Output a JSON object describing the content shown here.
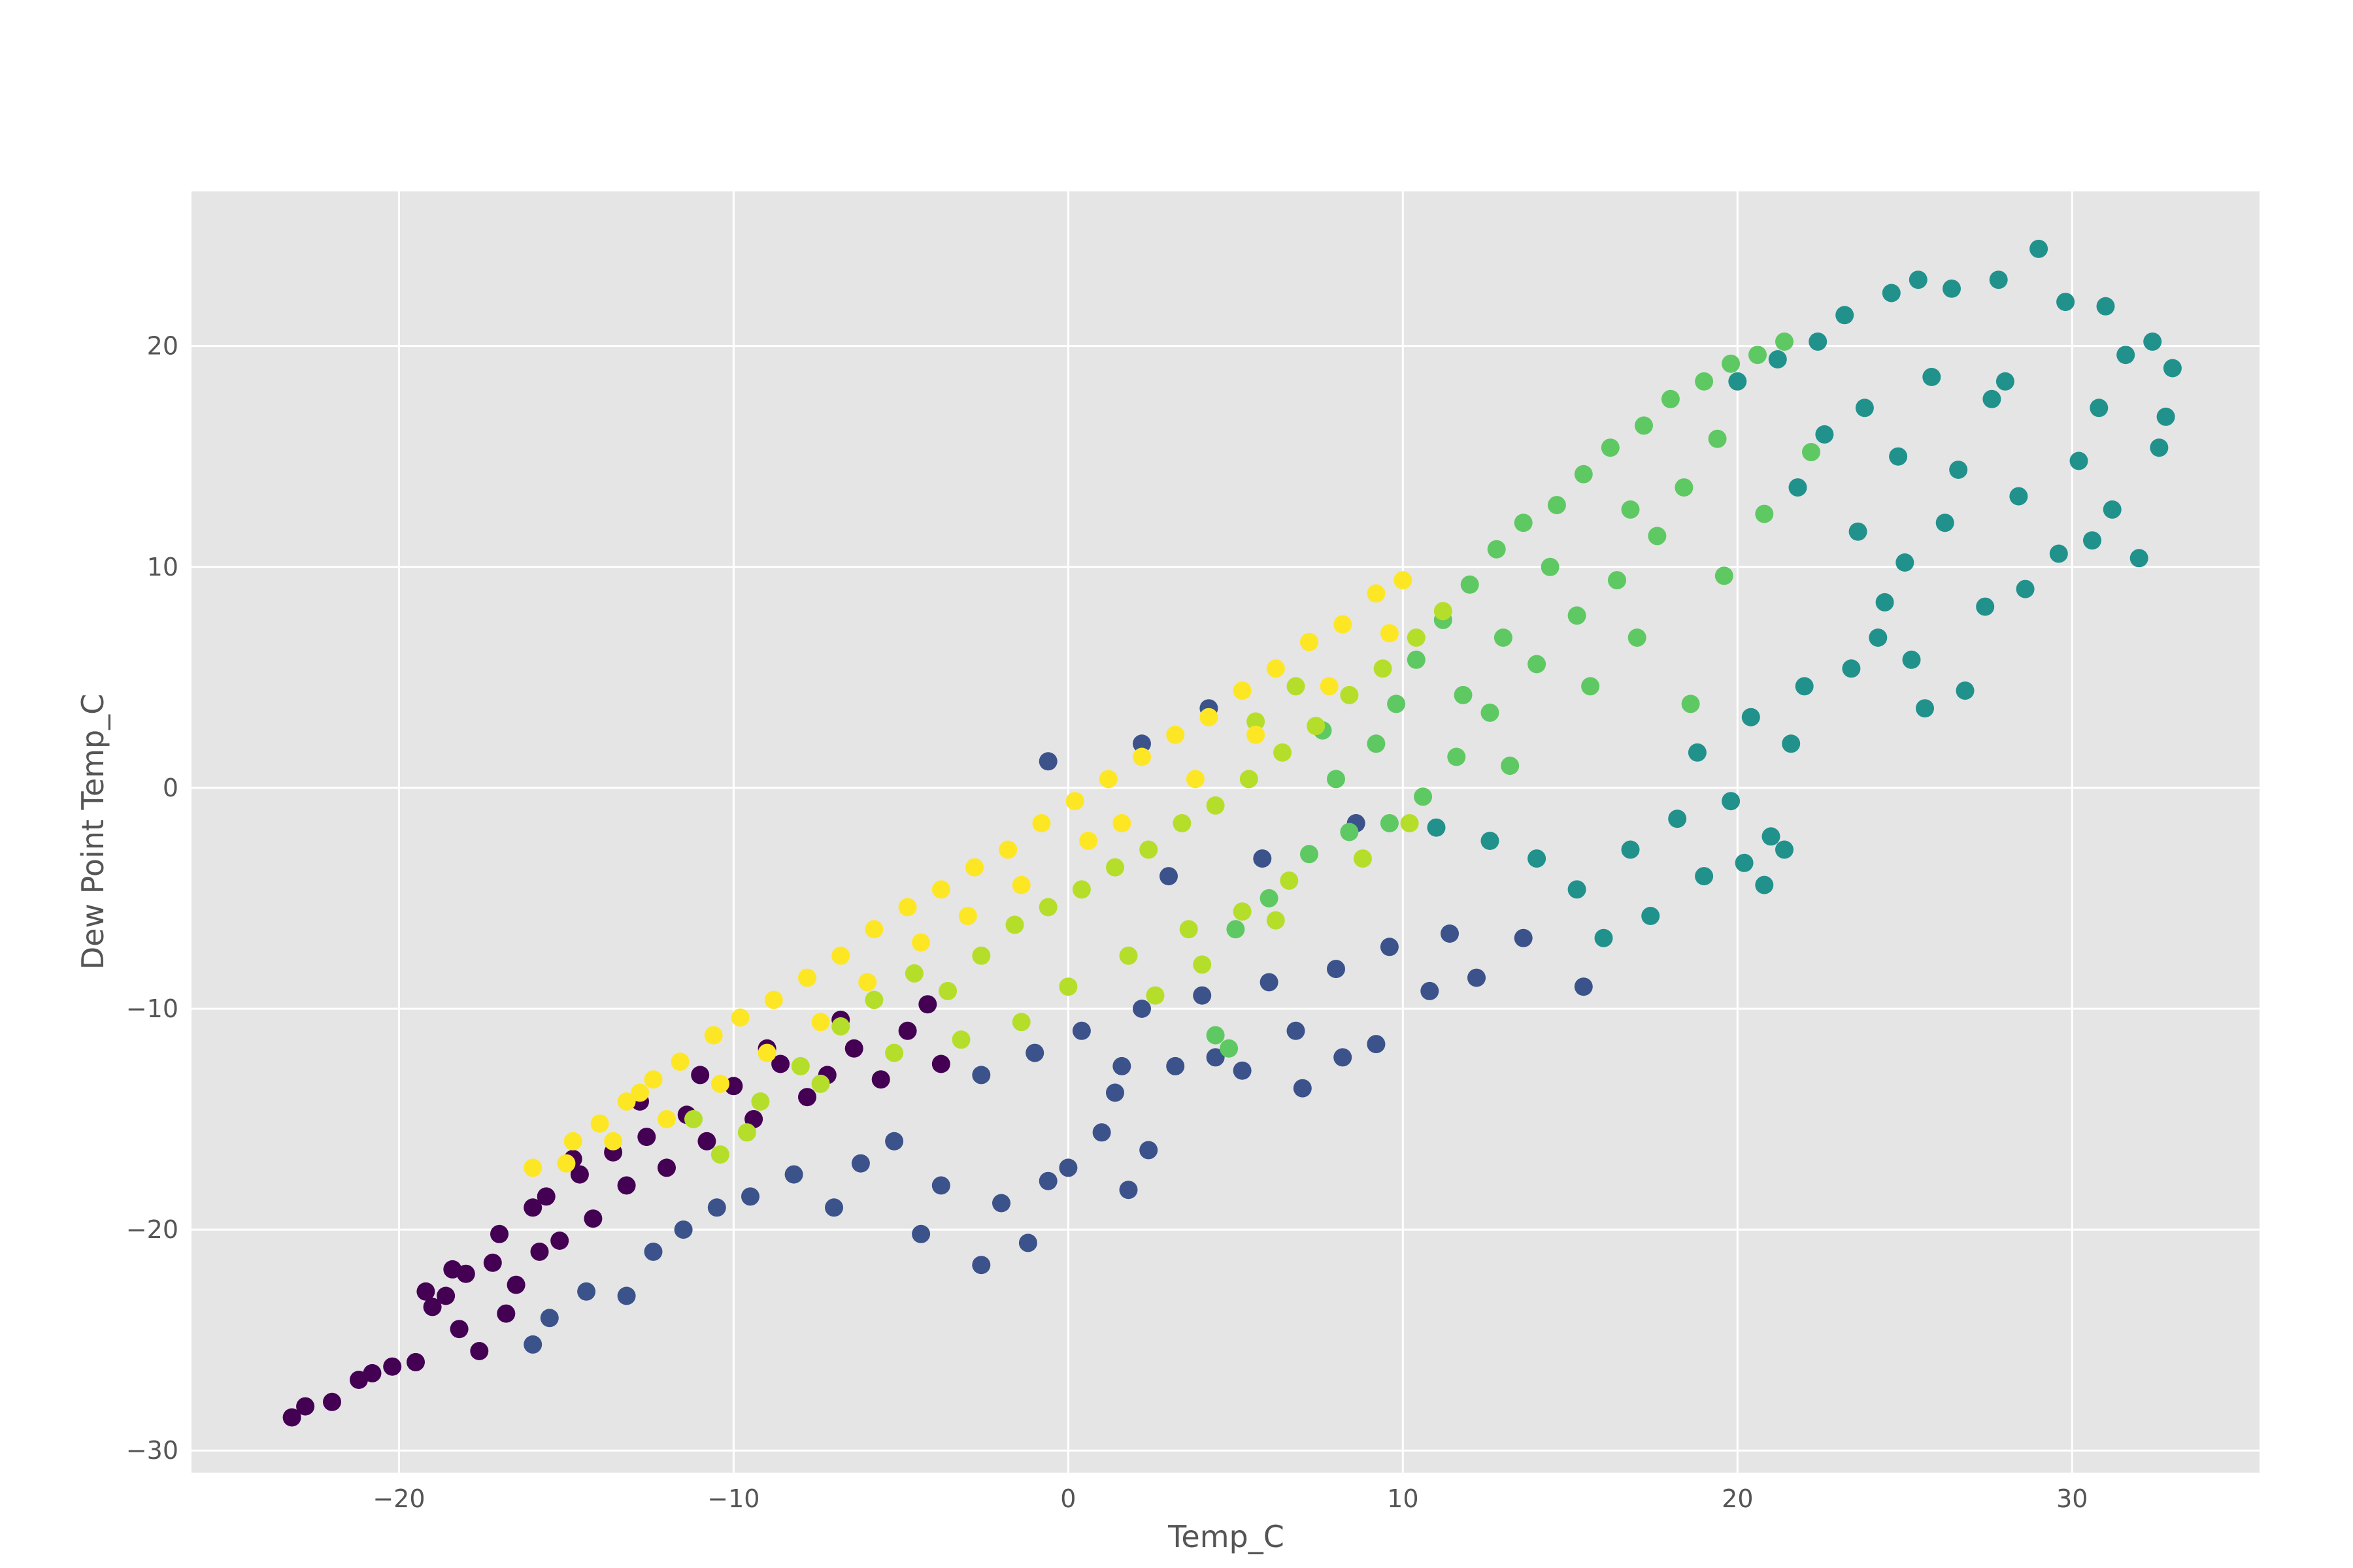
{
  "chart_data": {
    "type": "scatter",
    "title": "",
    "xlabel": "Temp_C",
    "ylabel": "Dew Point Temp_C",
    "xlim": [
      -26.2,
      35.6
    ],
    "ylim": [
      -31.0,
      27.0
    ],
    "xticks": [
      -20,
      -10,
      0,
      10,
      20,
      30
    ],
    "yticks": [
      -30,
      -20,
      -10,
      0,
      10,
      20
    ],
    "xtick_labels": [
      "−20",
      "−10",
      "0",
      "10",
      "20",
      "30"
    ],
    "ytick_labels": [
      "−30",
      "−20",
      "−10",
      "0",
      "10",
      "20"
    ],
    "grid": true,
    "legend": "none",
    "colormap": "viridis",
    "colors": {
      "plot_background": "#e5e5e5",
      "grid": "#ffffff",
      "text": "#555555"
    },
    "series": [
      {
        "color_group": "dark purple (cold months)",
        "color": "#440154",
        "points": [
          [
            -23.2,
            -28.5
          ],
          [
            -22.8,
            -28.0
          ],
          [
            -22.0,
            -27.8
          ],
          [
            -21.2,
            -26.8
          ],
          [
            -20.8,
            -26.5
          ],
          [
            -20.2,
            -26.2
          ],
          [
            -19.5,
            -26.0
          ],
          [
            -19.0,
            -23.5
          ],
          [
            -18.6,
            -23.0
          ],
          [
            -18.2,
            -24.5
          ],
          [
            -18.0,
            -22.0
          ],
          [
            -17.6,
            -25.5
          ],
          [
            -17.2,
            -21.5
          ],
          [
            -16.8,
            -23.8
          ],
          [
            -16.5,
            -22.5
          ],
          [
            -16.0,
            -19.0
          ],
          [
            -15.6,
            -18.5
          ],
          [
            -15.2,
            -20.5
          ],
          [
            -14.6,
            -17.5
          ],
          [
            -14.2,
            -19.5
          ],
          [
            -13.6,
            -16.5
          ],
          [
            -13.2,
            -18.0
          ],
          [
            -12.6,
            -15.8
          ],
          [
            -12.0,
            -17.2
          ],
          [
            -11.4,
            -14.8
          ],
          [
            -10.8,
            -16.0
          ],
          [
            -10.0,
            -13.5
          ],
          [
            -9.4,
            -15.0
          ],
          [
            -8.6,
            -12.5
          ],
          [
            -7.8,
            -14.0
          ],
          [
            -7.2,
            -13.0
          ],
          [
            -6.4,
            -11.8
          ],
          [
            -5.6,
            -13.2
          ],
          [
            -4.8,
            -11.0
          ],
          [
            -3.8,
            -12.5
          ],
          [
            -18.4,
            -21.8
          ],
          [
            -19.2,
            -22.8
          ],
          [
            -17.0,
            -20.2
          ],
          [
            -15.8,
            -21.0
          ],
          [
            -14.8,
            -16.8
          ],
          [
            -12.8,
            -14.2
          ],
          [
            -11.0,
            -13.0
          ],
          [
            -9.0,
            -11.8
          ],
          [
            -6.8,
            -10.5
          ],
          [
            -4.2,
            -9.8
          ]
        ]
      },
      {
        "color_group": "dark blue",
        "color": "#3b528b",
        "points": [
          [
            -16.0,
            -25.2
          ],
          [
            -15.5,
            -24.0
          ],
          [
            -14.4,
            -22.8
          ],
          [
            -13.2,
            -23.0
          ],
          [
            -12.4,
            -21.0
          ],
          [
            -11.5,
            -20.0
          ],
          [
            -10.5,
            -19.0
          ],
          [
            -9.5,
            -18.5
          ],
          [
            -8.2,
            -17.5
          ],
          [
            -7.0,
            -19.0
          ],
          [
            -6.2,
            -17.0
          ],
          [
            -5.2,
            -16.0
          ],
          [
            -4.4,
            -20.2
          ],
          [
            -3.8,
            -18.0
          ],
          [
            -2.6,
            -21.6
          ],
          [
            -2.0,
            -18.8
          ],
          [
            -1.2,
            -20.6
          ],
          [
            -0.6,
            -17.8
          ],
          [
            0.0,
            -17.2
          ],
          [
            1.0,
            -15.6
          ],
          [
            1.4,
            -13.8
          ],
          [
            1.6,
            -12.6
          ],
          [
            2.4,
            -16.4
          ],
          [
            1.8,
            -18.2
          ],
          [
            3.2,
            -12.6
          ],
          [
            4.4,
            -12.2
          ],
          [
            5.2,
            -12.8
          ],
          [
            6.8,
            -11.0
          ],
          [
            7.0,
            -13.6
          ],
          [
            8.2,
            -12.2
          ],
          [
            9.2,
            -11.6
          ],
          [
            10.8,
            -9.2
          ],
          [
            12.2,
            -8.6
          ],
          [
            15.4,
            -9.0
          ],
          [
            -2.6,
            -13.0
          ],
          [
            -1.0,
            -12.0
          ],
          [
            0.4,
            -11.0
          ],
          [
            2.2,
            -10.0
          ],
          [
            4.0,
            -9.4
          ],
          [
            6.0,
            -8.8
          ],
          [
            8.0,
            -8.2
          ],
          [
            9.6,
            -7.2
          ],
          [
            11.4,
            -6.6
          ],
          [
            13.6,
            -6.8
          ],
          [
            -0.6,
            1.2
          ],
          [
            2.2,
            2.0
          ],
          [
            4.2,
            3.6
          ],
          [
            3.0,
            -4.0
          ],
          [
            5.8,
            -3.2
          ],
          [
            8.6,
            -1.6
          ]
        ]
      },
      {
        "color_group": "teal",
        "color": "#21918c",
        "points": [
          [
            11.0,
            -1.8
          ],
          [
            12.6,
            -2.4
          ],
          [
            14.0,
            -3.2
          ],
          [
            15.2,
            -4.6
          ],
          [
            16.0,
            -6.8
          ],
          [
            16.8,
            -2.8
          ],
          [
            17.4,
            -5.8
          ],
          [
            18.2,
            -1.4
          ],
          [
            19.0,
            -4.0
          ],
          [
            19.8,
            -0.6
          ],
          [
            20.2,
            -3.4
          ],
          [
            21.0,
            -2.2
          ],
          [
            21.4,
            -2.8
          ],
          [
            20.8,
            -4.4
          ],
          [
            18.8,
            1.6
          ],
          [
            20.4,
            3.2
          ],
          [
            21.6,
            2.0
          ],
          [
            22.0,
            4.6
          ],
          [
            23.4,
            5.4
          ],
          [
            24.2,
            6.8
          ],
          [
            25.2,
            5.8
          ],
          [
            25.6,
            3.6
          ],
          [
            26.8,
            4.4
          ],
          [
            27.4,
            8.2
          ],
          [
            28.6,
            9.0
          ],
          [
            29.6,
            10.6
          ],
          [
            30.6,
            11.2
          ],
          [
            31.2,
            12.6
          ],
          [
            32.0,
            10.4
          ],
          [
            32.6,
            15.4
          ],
          [
            32.8,
            16.8
          ],
          [
            33.0,
            19.0
          ],
          [
            32.4,
            20.2
          ],
          [
            31.6,
            19.6
          ],
          [
            31.0,
            21.8
          ],
          [
            29.8,
            22.0
          ],
          [
            29.0,
            24.4
          ],
          [
            27.8,
            23.0
          ],
          [
            26.4,
            22.6
          ],
          [
            25.4,
            23.0
          ],
          [
            24.6,
            22.4
          ],
          [
            23.2,
            21.4
          ],
          [
            22.4,
            20.2
          ],
          [
            21.2,
            19.4
          ],
          [
            20.0,
            18.4
          ],
          [
            22.6,
            16.0
          ],
          [
            24.8,
            15.0
          ],
          [
            26.6,
            14.4
          ],
          [
            28.4,
            13.2
          ],
          [
            30.2,
            14.8
          ],
          [
            27.6,
            17.6
          ],
          [
            25.8,
            18.6
          ],
          [
            23.8,
            17.2
          ],
          [
            21.8,
            13.6
          ],
          [
            23.6,
            11.6
          ],
          [
            25.0,
            10.2
          ],
          [
            26.2,
            12.0
          ],
          [
            28.0,
            18.4
          ],
          [
            30.8,
            17.2
          ],
          [
            24.4,
            8.4
          ]
        ]
      },
      {
        "color_group": "green",
        "color": "#5ec962",
        "points": [
          [
            10.4,
            5.8
          ],
          [
            11.2,
            7.6
          ],
          [
            12.0,
            9.2
          ],
          [
            12.8,
            10.8
          ],
          [
            13.6,
            12.0
          ],
          [
            14.6,
            12.8
          ],
          [
            15.4,
            14.2
          ],
          [
            16.2,
            15.4
          ],
          [
            17.2,
            16.4
          ],
          [
            18.0,
            17.6
          ],
          [
            19.0,
            18.4
          ],
          [
            19.8,
            19.2
          ],
          [
            20.6,
            19.6
          ],
          [
            21.4,
            20.2
          ],
          [
            18.4,
            13.6
          ],
          [
            17.6,
            11.4
          ],
          [
            16.4,
            9.4
          ],
          [
            15.2,
            7.8
          ],
          [
            14.0,
            5.6
          ],
          [
            12.6,
            3.4
          ],
          [
            11.6,
            1.4
          ],
          [
            10.6,
            -0.4
          ],
          [
            9.6,
            -1.6
          ],
          [
            8.4,
            -2.0
          ],
          [
            7.2,
            -3.0
          ],
          [
            6.0,
            -5.0
          ],
          [
            5.0,
            -6.4
          ],
          [
            4.4,
            -11.2
          ],
          [
            4.8,
            -11.8
          ],
          [
            8.0,
            0.4
          ],
          [
            9.2,
            2.0
          ],
          [
            13.2,
            1.0
          ],
          [
            15.6,
            4.6
          ],
          [
            17.0,
            6.8
          ],
          [
            18.6,
            3.8
          ],
          [
            19.6,
            9.6
          ],
          [
            20.8,
            12.4
          ],
          [
            22.2,
            15.2
          ],
          [
            19.4,
            15.8
          ],
          [
            16.8,
            12.6
          ],
          [
            14.4,
            10.0
          ],
          [
            13.0,
            6.8
          ],
          [
            11.8,
            4.2
          ],
          [
            9.8,
            3.8
          ],
          [
            7.6,
            2.6
          ]
        ]
      },
      {
        "color_group": "yellow-green",
        "color": "#b5de2b",
        "points": [
          [
            -11.2,
            -15.0
          ],
          [
            -10.4,
            -16.6
          ],
          [
            -9.2,
            -14.2
          ],
          [
            -8.0,
            -12.6
          ],
          [
            -6.8,
            -10.8
          ],
          [
            -5.8,
            -9.6
          ],
          [
            -4.6,
            -8.4
          ],
          [
            -3.6,
            -9.2
          ],
          [
            -2.6,
            -7.6
          ],
          [
            -1.6,
            -6.2
          ],
          [
            -0.6,
            -5.4
          ],
          [
            0.4,
            -4.6
          ],
          [
            1.4,
            -3.6
          ],
          [
            2.4,
            -2.8
          ],
          [
            3.4,
            -1.6
          ],
          [
            4.4,
            -0.8
          ],
          [
            5.4,
            0.4
          ],
          [
            6.4,
            1.6
          ],
          [
            7.4,
            2.8
          ],
          [
            8.4,
            4.2
          ],
          [
            9.4,
            5.4
          ],
          [
            10.4,
            6.8
          ],
          [
            11.2,
            8.0
          ],
          [
            6.8,
            4.6
          ],
          [
            5.6,
            3.0
          ],
          [
            -5.2,
            -12.0
          ],
          [
            -3.2,
            -11.4
          ],
          [
            -1.4,
            -10.6
          ],
          [
            0.0,
            -9.0
          ],
          [
            1.8,
            -7.6
          ],
          [
            3.6,
            -6.4
          ],
          [
            5.2,
            -5.6
          ],
          [
            6.6,
            -4.2
          ],
          [
            8.8,
            -3.2
          ],
          [
            10.2,
            -1.6
          ],
          [
            -7.4,
            -13.4
          ],
          [
            -9.6,
            -15.6
          ],
          [
            2.6,
            -9.4
          ],
          [
            4.0,
            -8.0
          ],
          [
            6.2,
            -6.0
          ]
        ]
      },
      {
        "color_group": "yellow (near saturation)",
        "color": "#fde725",
        "points": [
          [
            -16.0,
            -17.2
          ],
          [
            -14.8,
            -16.0
          ],
          [
            -14.0,
            -15.2
          ],
          [
            -13.2,
            -14.2
          ],
          [
            -12.4,
            -13.2
          ],
          [
            -11.6,
            -12.4
          ],
          [
            -10.6,
            -11.2
          ],
          [
            -9.8,
            -10.4
          ],
          [
            -8.8,
            -9.6
          ],
          [
            -7.8,
            -8.6
          ],
          [
            -6.8,
            -7.6
          ],
          [
            -5.8,
            -6.4
          ],
          [
            -4.8,
            -5.4
          ],
          [
            -3.8,
            -4.6
          ],
          [
            -2.8,
            -3.6
          ],
          [
            -1.8,
            -2.8
          ],
          [
            -0.8,
            -1.6
          ],
          [
            0.2,
            -0.6
          ],
          [
            1.2,
            0.4
          ],
          [
            2.2,
            1.4
          ],
          [
            3.2,
            2.4
          ],
          [
            4.2,
            3.2
          ],
          [
            5.2,
            4.4
          ],
          [
            6.2,
            5.4
          ],
          [
            7.2,
            6.6
          ],
          [
            8.2,
            7.4
          ],
          [
            9.2,
            8.8
          ],
          [
            10.0,
            9.4
          ],
          [
            -15.0,
            -17.0
          ],
          [
            -13.6,
            -16.0
          ],
          [
            -12.0,
            -15.0
          ],
          [
            -10.4,
            -13.4
          ],
          [
            -9.0,
            -12.0
          ],
          [
            -7.4,
            -10.6
          ],
          [
            -6.0,
            -8.8
          ],
          [
            -4.4,
            -7.0
          ],
          [
            -3.0,
            -5.8
          ],
          [
            -1.4,
            -4.4
          ],
          [
            0.6,
            -2.4
          ],
          [
            1.6,
            -1.6
          ],
          [
            3.8,
            0.4
          ],
          [
            5.6,
            2.4
          ],
          [
            7.8,
            4.6
          ],
          [
            9.6,
            7.0
          ],
          [
            -12.8,
            -13.8
          ]
        ]
      }
    ]
  }
}
